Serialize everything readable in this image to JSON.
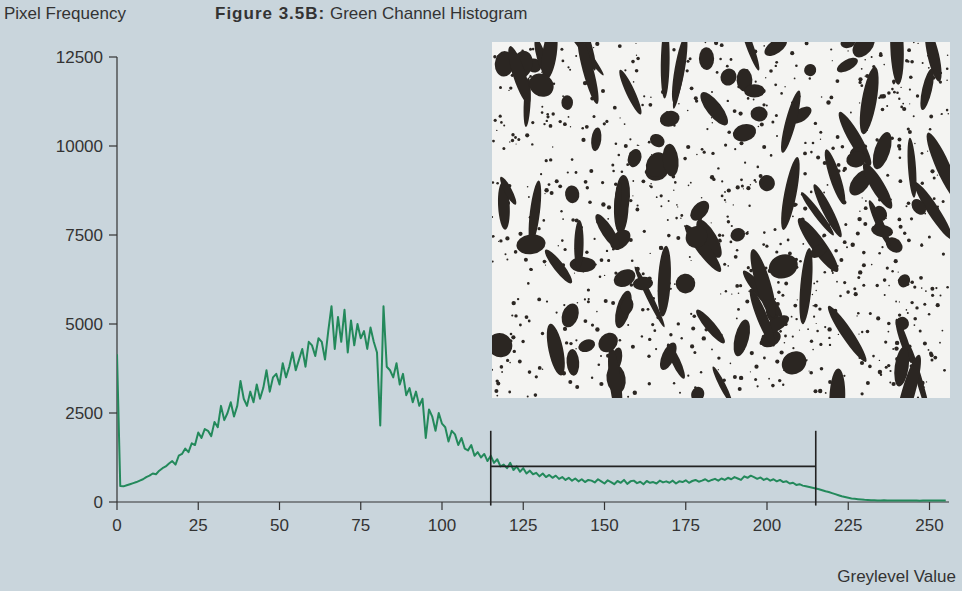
{
  "chart_data": {
    "type": "line",
    "title": "Figure 3.5B: Green Channel Histogram",
    "y_label": "Pixel Frequency",
    "x_label": "Greylevel Value",
    "color": "#23895b",
    "xlim": [
      0,
      256
    ],
    "xticks": [
      0,
      25,
      50,
      75,
      100,
      125,
      150,
      175,
      200,
      225,
      250
    ],
    "ylim": [
      0,
      12500
    ],
    "yticks": [
      0,
      2500,
      5000,
      7500,
      10000,
      12500
    ],
    "grid": false,
    "selection": {
      "x": [
        115,
        215
      ],
      "y": 1000,
      "y_range": [
        -100,
        2000
      ]
    },
    "x": [
      0,
      1,
      2,
      3,
      4,
      5,
      6,
      7,
      8,
      9,
      10,
      11,
      12,
      13,
      14,
      15,
      16,
      17,
      18,
      19,
      20,
      21,
      22,
      23,
      24,
      25,
      26,
      27,
      28,
      29,
      30,
      31,
      32,
      33,
      34,
      35,
      36,
      37,
      38,
      39,
      40,
      41,
      42,
      43,
      44,
      45,
      46,
      47,
      48,
      49,
      50,
      51,
      52,
      53,
      54,
      55,
      56,
      57,
      58,
      59,
      60,
      61,
      62,
      63,
      64,
      65,
      66,
      67,
      68,
      69,
      70,
      71,
      72,
      73,
      74,
      75,
      76,
      77,
      78,
      79,
      80,
      81,
      82,
      83,
      84,
      85,
      86,
      87,
      88,
      89,
      90,
      91,
      92,
      93,
      94,
      95,
      96,
      97,
      98,
      99,
      100,
      101,
      102,
      103,
      104,
      105,
      106,
      107,
      108,
      109,
      110,
      111,
      112,
      113,
      114,
      115,
      116,
      117,
      118,
      119,
      120,
      121,
      122,
      123,
      124,
      125,
      126,
      127,
      128,
      129,
      130,
      131,
      132,
      133,
      134,
      135,
      136,
      137,
      138,
      139,
      140,
      141,
      142,
      143,
      144,
      145,
      146,
      147,
      148,
      149,
      150,
      151,
      152,
      153,
      154,
      155,
      156,
      157,
      158,
      159,
      160,
      161,
      162,
      163,
      164,
      165,
      166,
      167,
      168,
      169,
      170,
      171,
      172,
      173,
      174,
      175,
      176,
      177,
      178,
      179,
      180,
      181,
      182,
      183,
      184,
      185,
      186,
      187,
      188,
      189,
      190,
      191,
      192,
      193,
      194,
      195,
      196,
      197,
      198,
      199,
      200,
      201,
      202,
      203,
      204,
      205,
      206,
      207,
      208,
      209,
      210,
      211,
      212,
      213,
      214,
      215,
      216,
      217,
      218,
      219,
      220,
      221,
      222,
      223,
      224,
      225,
      226,
      227,
      228,
      229,
      230,
      231,
      232,
      233,
      234,
      235,
      236,
      237,
      238,
      239,
      240,
      241,
      242,
      243,
      244,
      245,
      246,
      247,
      248,
      249,
      250,
      251,
      252,
      253,
      254,
      255
    ],
    "values": [
      4150,
      450,
      440,
      470,
      500,
      530,
      560,
      600,
      640,
      700,
      740,
      800,
      780,
      880,
      950,
      1000,
      1080,
      1150,
      1050,
      1300,
      1350,
      1500,
      1400,
      1650,
      1600,
      1950,
      1800,
      2050,
      2000,
      1850,
      2250,
      2100,
      2700,
      2300,
      2500,
      2800,
      2400,
      2700,
      3400,
      2900,
      2700,
      3100,
      2800,
      3300,
      2900,
      3200,
      3700,
      3100,
      3500,
      3600,
      3300,
      3900,
      3500,
      3800,
      4200,
      3700,
      4000,
      4300,
      3800,
      4500,
      4400,
      4100,
      4600,
      4500,
      4000,
      4800,
      5500,
      4300,
      5200,
      4500,
      5400,
      4200,
      5100,
      4400,
      5000,
      4600,
      4800,
      4300,
      4900,
      4500,
      4200,
      2150,
      5500,
      3800,
      3700,
      3500,
      3900,
      3300,
      3600,
      3000,
      3200,
      2800,
      3100,
      2700,
      2900,
      1800,
      2600,
      2400,
      2000,
      2500,
      2200,
      2100,
      1700,
      2000,
      1900,
      1600,
      1800,
      1500,
      1450,
      1600,
      1300,
      1400,
      1250,
      1350,
      1150,
      1300,
      1100,
      1200,
      1000,
      1050,
      950,
      1100,
      900,
      1000,
      850,
      950,
      800,
      880,
      780,
      820,
      720,
      800,
      700,
      760,
      680,
      740,
      650,
      700,
      620,
      680,
      600,
      660,
      580,
      640,
      560,
      620,
      600,
      550,
      640,
      580,
      520,
      610,
      560,
      500,
      590,
      540,
      620,
      510,
      580,
      600,
      530,
      570,
      500,
      590,
      540,
      560,
      520,
      600,
      550,
      580,
      540,
      600,
      520,
      580,
      560,
      610,
      540,
      590,
      620,
      570,
      600,
      640,
      580,
      620,
      650,
      600,
      660,
      620,
      680,
      640,
      700,
      660,
      620,
      720,
      680,
      740,
      700,
      650,
      690,
      620,
      660,
      600,
      640,
      580,
      620,
      560,
      580,
      520,
      540,
      480,
      500,
      460,
      440,
      420,
      400,
      380,
      360,
      330,
      300,
      280,
      250,
      220,
      190,
      160,
      140,
      120,
      100,
      90,
      80,
      70,
      60,
      55,
      50,
      50,
      45,
      45,
      50,
      45,
      40,
      40,
      40,
      45,
      40,
      40,
      45,
      40,
      40,
      35,
      40,
      40,
      40,
      40,
      45,
      40,
      40,
      45
    ]
  }
}
